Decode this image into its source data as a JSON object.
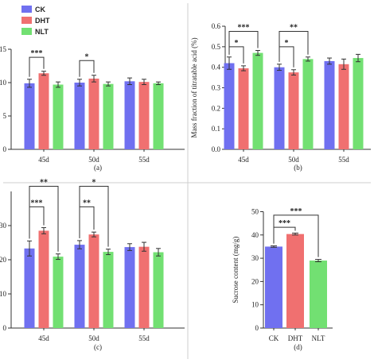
{
  "legend": [
    {
      "name": "CK",
      "color": "#7070f0"
    },
    {
      "name": "DHT",
      "color": "#f07070"
    },
    {
      "name": "NLT",
      "color": "#72e072"
    }
  ],
  "chart_data": [
    {
      "type": "bar",
      "panel_label": "(a)",
      "ylabel": "",
      "ylim": [
        0,
        15
      ],
      "yticks": [
        "0",
        "5",
        "10",
        "15"
      ],
      "categories": [
        "45d",
        "50d",
        "55d"
      ],
      "series": [
        {
          "name": "CK",
          "values": [
            9.9,
            10.0,
            10.2
          ],
          "errors": [
            0.6,
            0.5,
            0.5
          ]
        },
        {
          "name": "DHT",
          "values": [
            11.4,
            10.6,
            10.1
          ],
          "errors": [
            0.3,
            0.5,
            0.4
          ]
        },
        {
          "name": "NLT",
          "values": [
            9.7,
            9.8,
            9.9
          ],
          "errors": [
            0.4,
            0.3,
            0.2
          ]
        }
      ],
      "significance": [
        {
          "category": 0,
          "from": 0,
          "to": 1,
          "label": "***",
          "level": 13.8
        },
        {
          "category": 1,
          "from": 0,
          "to": 1,
          "label": "*",
          "level": 13.3
        }
      ]
    },
    {
      "type": "bar",
      "panel_label": "(b)",
      "ylabel": "Mass fraction of titratable acid (%)",
      "ylim": [
        0,
        0.6
      ],
      "yticks": [
        "0.0",
        "0.1",
        "0.2",
        "0.3",
        "0.4",
        "0.5",
        "0.6"
      ],
      "categories": [
        "45d",
        "50d",
        "55d"
      ],
      "series": [
        {
          "name": "CK",
          "values": [
            0.42,
            0.4,
            0.43
          ],
          "errors": [
            0.03,
            0.015,
            0.015
          ]
        },
        {
          "name": "DHT",
          "values": [
            0.395,
            0.375,
            0.415
          ],
          "errors": [
            0.012,
            0.013,
            0.025
          ]
        },
        {
          "name": "NLT",
          "values": [
            0.47,
            0.44,
            0.445
          ],
          "errors": [
            0.012,
            0.01,
            0.018
          ]
        }
      ],
      "significance": [
        {
          "category": 0,
          "from": 0,
          "to": 1,
          "label": "*",
          "level": 0.5
        },
        {
          "category": 0,
          "from": 0,
          "to": 2,
          "label": "***",
          "level": 0.575
        },
        {
          "category": 1,
          "from": 0,
          "to": 1,
          "label": "*",
          "level": 0.5
        },
        {
          "category": 1,
          "from": 0,
          "to": 2,
          "label": "**",
          "level": 0.575
        }
      ]
    },
    {
      "type": "bar",
      "panel_label": "(c)",
      "ylabel": "",
      "ylim": [
        0,
        40
      ],
      "yticks": [
        "0",
        "10",
        "20",
        "30"
      ],
      "categories": [
        "45d",
        "50d",
        "55d"
      ],
      "series": [
        {
          "name": "CK",
          "values": [
            23.3,
            24.4,
            23.7
          ],
          "errors": [
            2.2,
            1.2,
            1.0
          ]
        },
        {
          "name": "DHT",
          "values": [
            28.5,
            27.4,
            23.8
          ],
          "errors": [
            0.9,
            0.7,
            1.3
          ]
        },
        {
          "name": "NLT",
          "values": [
            20.9,
            22.3,
            22.2
          ],
          "errors": [
            0.8,
            0.8,
            1.1
          ]
        }
      ],
      "significance": [
        {
          "category": 0,
          "from": 0,
          "to": 1,
          "label": "***",
          "level": 35.5
        },
        {
          "category": 0,
          "from": 0,
          "to": 2,
          "label": "**",
          "level": 41.5
        },
        {
          "category": 1,
          "from": 0,
          "to": 1,
          "label": "**",
          "level": 35.5
        },
        {
          "category": 1,
          "from": 0,
          "to": 2,
          "label": "*",
          "level": 41.5
        }
      ]
    },
    {
      "type": "bar",
      "panel_label": "(d)",
      "ylabel": "Sucrose content (mg/g)",
      "ylim": [
        0,
        50
      ],
      "yticks": [
        "0",
        "10",
        "20",
        "30",
        "40",
        "50"
      ],
      "categories": [
        "CK",
        "DHT",
        "NLT"
      ],
      "values": [
        35.0,
        40.4,
        29.0
      ],
      "errors": [
        0.3,
        0.4,
        0.5
      ],
      "colors": [
        "#7070f0",
        "#f07070",
        "#72e072"
      ],
      "significance": [
        {
          "from": 0,
          "to": 1,
          "label": "***",
          "level": 43.3
        },
        {
          "from": 0,
          "to": 2,
          "label": "***",
          "level": 48.5
        }
      ]
    }
  ]
}
